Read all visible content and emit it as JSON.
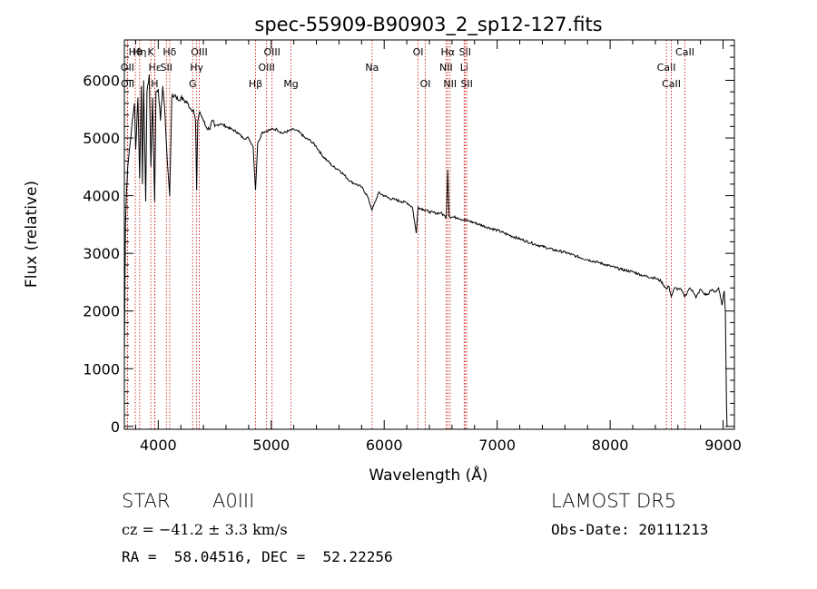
{
  "colors": {
    "line_marker": "#cc2222",
    "spectrum": "#000000",
    "axes": "#000000"
  },
  "chart_data": {
    "type": "line",
    "title": "spec-55909-B90903_2_sp12-127.fits",
    "xlabel": "Wavelength (Å)",
    "ylabel": "Flux (relative)",
    "xlim": [
      3700,
      9100
    ],
    "ylim": [
      -50,
      6700
    ],
    "x_ticks": [
      4000,
      5000,
      6000,
      7000,
      8000,
      9000
    ],
    "y_ticks": [
      0,
      1000,
      2000,
      3000,
      4000,
      5000,
      6000
    ],
    "x_tick_labels": [
      "4000",
      "5000",
      "6000",
      "7000",
      "8000",
      "9000"
    ],
    "y_tick_labels": [
      "0",
      "1000",
      "2000",
      "3000",
      "4000",
      "5000",
      "6000"
    ],
    "grid": false,
    "series": [
      {
        "x": [
          3700,
          3710,
          3720,
          3730,
          3750,
          3770,
          3790,
          3800,
          3820,
          3835,
          3850,
          3860,
          3870,
          3889,
          3900,
          3920,
          3935,
          3950,
          3968,
          3980,
          4000,
          4020,
          4040,
          4060,
          4080,
          4101,
          4120,
          4150,
          4180,
          4200,
          4230,
          4260,
          4290,
          4310,
          4330,
          4340,
          4350,
          4370,
          4390,
          4420,
          4450,
          4480,
          4500,
          4550,
          4600,
          4650,
          4700,
          4750,
          4800,
          4840,
          4861,
          4880,
          4920,
          4960,
          5000,
          5050,
          5100,
          5150,
          5200,
          5250,
          5300,
          5350,
          5400,
          5450,
          5500,
          5550,
          5600,
          5650,
          5700,
          5750,
          5800,
          5850,
          5893,
          5950,
          6000,
          6050,
          6100,
          6150,
          6200,
          6250,
          6284,
          6300,
          6350,
          6400,
          6450,
          6500,
          6530,
          6550,
          6563,
          6575,
          6600,
          6650,
          6700,
          6750,
          6800,
          6900,
          7000,
          7100,
          7200,
          7300,
          7400,
          7500,
          7600,
          7700,
          7800,
          7900,
          8000,
          8100,
          8200,
          8300,
          8400,
          8450,
          8498,
          8520,
          8542,
          8570,
          8600,
          8620,
          8662,
          8700,
          8730,
          8760,
          8800,
          8830,
          8860,
          8900,
          8930,
          8960,
          8990,
          9010,
          9020,
          9030,
          9035,
          9040
        ],
        "y": [
          1300,
          3500,
          4100,
          4500,
          4900,
          5300,
          5600,
          4800,
          5700,
          4300,
          5900,
          4200,
          6000,
          3900,
          5800,
          6100,
          4500,
          5700,
          3900,
          5800,
          5850,
          5300,
          5900,
          5400,
          4600,
          4000,
          5700,
          5750,
          5650,
          5700,
          5650,
          5600,
          5500,
          5500,
          5300,
          4100,
          5300,
          5450,
          5350,
          5200,
          5150,
          5300,
          5200,
          5250,
          5200,
          5150,
          5100,
          5000,
          5000,
          4850,
          4100,
          4900,
          5100,
          5120,
          5150,
          5150,
          5080,
          5120,
          5150,
          5100,
          5000,
          4950,
          4850,
          4700,
          4600,
          4500,
          4450,
          4350,
          4250,
          4200,
          4150,
          4000,
          3750,
          4050,
          4000,
          3950,
          3930,
          3900,
          3880,
          3800,
          3350,
          3800,
          3760,
          3720,
          3700,
          3700,
          3660,
          3620,
          4450,
          3640,
          3630,
          3620,
          3580,
          3560,
          3530,
          3460,
          3400,
          3320,
          3250,
          3180,
          3120,
          3060,
          3020,
          2950,
          2890,
          2840,
          2780,
          2720,
          2680,
          2610,
          2570,
          2520,
          2380,
          2430,
          2250,
          2400,
          2380,
          2390,
          2250,
          2390,
          2360,
          2230,
          2380,
          2300,
          2280,
          2370,
          2330,
          2400,
          2100,
          2350,
          2000,
          400,
          0,
          0
        ]
      }
    ],
    "lines": [
      {
        "label": "Hη",
        "x": 3835,
        "row": 0
      },
      {
        "label": "Hθ",
        "x": 3797,
        "row": 0
      },
      {
        "label": "K",
        "x": 3934,
        "row": 0
      },
      {
        "label": "Hδ",
        "x": 4101,
        "row": 0
      },
      {
        "label": "OIII",
        "x": 4363,
        "row": 0
      },
      {
        "label": "OIII",
        "x": 5007,
        "row": 0
      },
      {
        "label": "OI",
        "x": 6300,
        "row": 0
      },
      {
        "label": "Hα",
        "x": 6563,
        "row": 0
      },
      {
        "label": "SII",
        "x": 6716,
        "row": 0
      },
      {
        "label": "CaII",
        "x": 8662,
        "row": 0
      },
      {
        "label": "OII",
        "x": 3727,
        "row": 1
      },
      {
        "label": "Hε",
        "x": 3970,
        "row": 1
      },
      {
        "label": "SII",
        "x": 4072,
        "row": 1
      },
      {
        "label": "Hγ",
        "x": 4340,
        "row": 1
      },
      {
        "label": "OIII",
        "x": 4959,
        "row": 1
      },
      {
        "label": "Na",
        "x": 5893,
        "row": 1
      },
      {
        "label": "NII",
        "x": 6548,
        "row": 1
      },
      {
        "label": "Li",
        "x": 6708,
        "row": 1
      },
      {
        "label": "CaII",
        "x": 8498,
        "row": 1
      },
      {
        "label": "OII",
        "x": 3729,
        "row": 2
      },
      {
        "label": "H",
        "x": 3968,
        "row": 2
      },
      {
        "label": "G",
        "x": 4305,
        "row": 2
      },
      {
        "label": "Hβ",
        "x": 4861,
        "row": 2
      },
      {
        "label": "Mg",
        "x": 5175,
        "row": 2
      },
      {
        "label": "OI",
        "x": 6364,
        "row": 2
      },
      {
        "label": "NII",
        "x": 6583,
        "row": 2
      },
      {
        "label": "SII",
        "x": 6731,
        "row": 2
      },
      {
        "label": "CaII",
        "x": 8542,
        "row": 2
      }
    ]
  },
  "info": {
    "class_label": "STAR",
    "subclass": "A0III",
    "survey": "LAMOST DR5",
    "cz": "cz = −41.2 ± 3.3 km/s",
    "obs_date": "Obs-Date: 20111213",
    "coords": "RA =  58.04516, DEC =  52.22256"
  }
}
